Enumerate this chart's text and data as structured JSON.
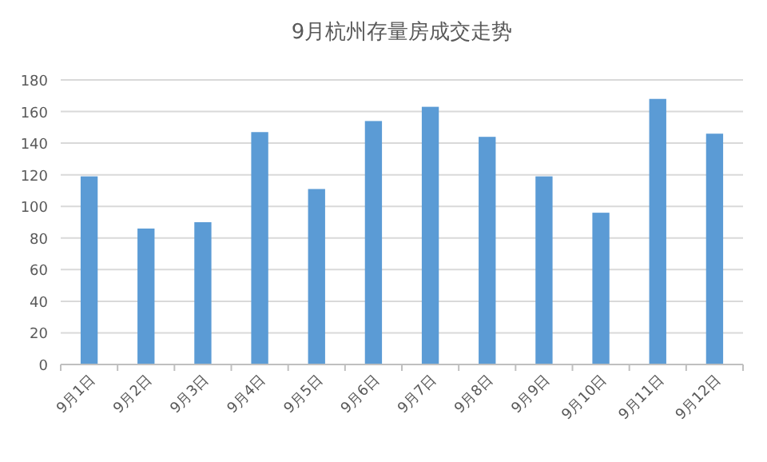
{
  "chart_data": {
    "type": "bar",
    "title": "9月杭州存量房成交走势",
    "categories": [
      "9月1日",
      "9月2日",
      "9月3日",
      "9月4日",
      "9月5日",
      "9月6日",
      "9月7日",
      "9月8日",
      "9月9日",
      "9月10日",
      "9月11日",
      "9月12日"
    ],
    "series": [
      {
        "color": "#5b9bd5",
        "values": [
          119,
          86,
          90,
          147,
          111,
          154,
          163,
          144,
          119,
          96,
          168,
          146
        ]
      }
    ],
    "ylim": [
      0,
      180
    ],
    "yticks": [
      0,
      20,
      40,
      60,
      80,
      100,
      120,
      140,
      160,
      180
    ],
    "grid": "y"
  }
}
